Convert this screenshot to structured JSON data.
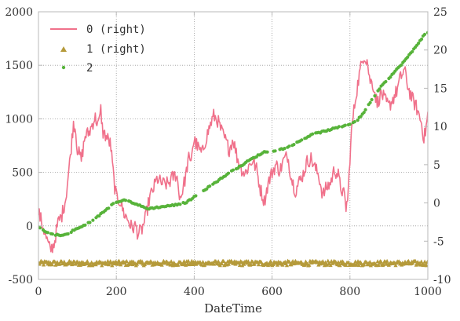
{
  "chart_data": {
    "type": "line",
    "xlabel": "DateTime",
    "xlim": [
      0,
      1000
    ],
    "ylim_left": [
      -500,
      2000
    ],
    "ylim_right": [
      -10,
      25
    ],
    "x_ticks": [
      0,
      200,
      400,
      600,
      800,
      1000
    ],
    "y_ticks_left": [
      -500,
      0,
      500,
      1000,
      1500,
      2000
    ],
    "y_ticks_right": [
      -10,
      -5,
      0,
      5,
      10,
      15,
      20,
      25
    ],
    "grid": true,
    "legend_position": "top-left",
    "series": [
      {
        "name": "0 (right)",
        "axis": "right",
        "style": "line",
        "color": "#f0718b",
        "anchors": [
          [
            0,
            -1.2
          ],
          [
            10,
            -2.8
          ],
          [
            20,
            -4.6
          ],
          [
            30,
            -6.2
          ],
          [
            40,
            -5.4
          ],
          [
            50,
            -2.6
          ],
          [
            60,
            -1.6
          ],
          [
            70,
            0.6
          ],
          [
            80,
            5.2
          ],
          [
            90,
            10.5
          ],
          [
            95,
            9.8
          ],
          [
            100,
            7.0
          ],
          [
            110,
            5.6
          ],
          [
            120,
            8.8
          ],
          [
            130,
            9.2
          ],
          [
            145,
            11.2
          ],
          [
            155,
            10.2
          ],
          [
            160,
            12.2
          ],
          [
            165,
            9.3
          ],
          [
            175,
            8.6
          ],
          [
            185,
            7.7
          ],
          [
            195,
            2.4
          ],
          [
            200,
            0.8
          ],
          [
            210,
            0.2
          ],
          [
            220,
            -1.4
          ],
          [
            230,
            -2.2
          ],
          [
            240,
            -3.3
          ],
          [
            250,
            -3.0
          ],
          [
            255,
            -4.0
          ],
          [
            265,
            -3.6
          ],
          [
            275,
            -2.0
          ],
          [
            285,
            0.6
          ],
          [
            295,
            1.8
          ],
          [
            305,
            3.2
          ],
          [
            315,
            2.6
          ],
          [
            325,
            2.4
          ],
          [
            335,
            2.6
          ],
          [
            345,
            3.4
          ],
          [
            355,
            3.8
          ],
          [
            360,
            1.6
          ],
          [
            365,
            0.6
          ],
          [
            375,
            2.8
          ],
          [
            380,
            4.0
          ],
          [
            385,
            6.0
          ],
          [
            390,
            5.0
          ],
          [
            395,
            7.2
          ],
          [
            400,
            8.2
          ],
          [
            410,
            7.2
          ],
          [
            420,
            6.4
          ],
          [
            430,
            8.4
          ],
          [
            440,
            10.0
          ],
          [
            450,
            11.4
          ],
          [
            460,
            10.8
          ],
          [
            470,
            9.4
          ],
          [
            480,
            8.2
          ],
          [
            490,
            7.0
          ],
          [
            500,
            8.4
          ],
          [
            510,
            6.0
          ],
          [
            520,
            4.6
          ],
          [
            530,
            3.8
          ],
          [
            540,
            4.8
          ],
          [
            550,
            5.6
          ],
          [
            560,
            4.4
          ],
          [
            570,
            1.8
          ],
          [
            580,
            0.2
          ],
          [
            585,
            1.4
          ],
          [
            590,
            2.6
          ],
          [
            600,
            4.0
          ],
          [
            610,
            5.0
          ],
          [
            620,
            4.2
          ],
          [
            630,
            5.6
          ],
          [
            640,
            6.2
          ],
          [
            650,
            3.2
          ],
          [
            660,
            1.6
          ],
          [
            670,
            2.8
          ],
          [
            680,
            3.8
          ],
          [
            690,
            5.4
          ],
          [
            700,
            5.8
          ],
          [
            710,
            4.6
          ],
          [
            720,
            3.6
          ],
          [
            730,
            1.0
          ],
          [
            740,
            2.0
          ],
          [
            750,
            2.6
          ],
          [
            760,
            4.4
          ],
          [
            770,
            3.6
          ],
          [
            775,
            2.2
          ],
          [
            785,
            1.0
          ],
          [
            790,
            -0.6
          ],
          [
            795,
            0.6
          ],
          [
            800,
            6.0
          ],
          [
            805,
            10.0
          ],
          [
            815,
            14.0
          ],
          [
            825,
            17.0
          ],
          [
            835,
            19.4
          ],
          [
            845,
            18.6
          ],
          [
            850,
            16.2
          ],
          [
            860,
            15.4
          ],
          [
            870,
            13.0
          ],
          [
            880,
            14.4
          ],
          [
            890,
            13.4
          ],
          [
            900,
            12.6
          ],
          [
            910,
            13.6
          ],
          [
            920,
            14.6
          ],
          [
            930,
            16.4
          ],
          [
            940,
            17.4
          ],
          [
            950,
            15.0
          ],
          [
            960,
            13.6
          ],
          [
            970,
            12.6
          ],
          [
            978,
            11.4
          ],
          [
            985,
            10.2
          ],
          [
            990,
            8.4
          ],
          [
            995,
            9.6
          ],
          [
            1000,
            11.6
          ]
        ]
      },
      {
        "name": "1 (right)",
        "axis": "right",
        "style": "markers",
        "marker": "triangle",
        "color": "#b59a3a",
        "range": [
          -8.2,
          -7.6
        ]
      },
      {
        "name": "2",
        "axis": "left",
        "style": "markers",
        "marker": "circle",
        "color": "#57b33a",
        "anchors": [
          [
            0,
            -10
          ],
          [
            20,
            -60
          ],
          [
            40,
            -80
          ],
          [
            60,
            -90
          ],
          [
            80,
            -70
          ],
          [
            90,
            -40
          ],
          [
            110,
            -10
          ],
          [
            130,
            30
          ],
          [
            150,
            80
          ],
          [
            170,
            140
          ],
          [
            190,
            200
          ],
          [
            205,
            230
          ],
          [
            220,
            240
          ],
          [
            240,
            220
          ],
          [
            260,
            190
          ],
          [
            280,
            160
          ],
          [
            300,
            170
          ],
          [
            320,
            180
          ],
          [
            340,
            190
          ],
          [
            360,
            200
          ],
          [
            380,
            220
          ],
          [
            400,
            270
          ],
          [
            420,
            320
          ],
          [
            440,
            370
          ],
          [
            460,
            420
          ],
          [
            480,
            470
          ],
          [
            500,
            520
          ],
          [
            520,
            560
          ],
          [
            540,
            610
          ],
          [
            560,
            650
          ],
          [
            580,
            690
          ],
          [
            600,
            700
          ],
          [
            620,
            710
          ],
          [
            640,
            740
          ],
          [
            660,
            770
          ],
          [
            680,
            810
          ],
          [
            700,
            850
          ],
          [
            720,
            870
          ],
          [
            740,
            890
          ],
          [
            760,
            910
          ],
          [
            780,
            930
          ],
          [
            790,
            940
          ],
          [
            800,
            950
          ],
          [
            820,
            990
          ],
          [
            840,
            1080
          ],
          [
            860,
            1200
          ],
          [
            880,
            1300
          ],
          [
            900,
            1380
          ],
          [
            920,
            1460
          ],
          [
            940,
            1540
          ],
          [
            960,
            1630
          ],
          [
            980,
            1730
          ],
          [
            990,
            1780
          ],
          [
            1000,
            1800
          ]
        ]
      }
    ]
  }
}
